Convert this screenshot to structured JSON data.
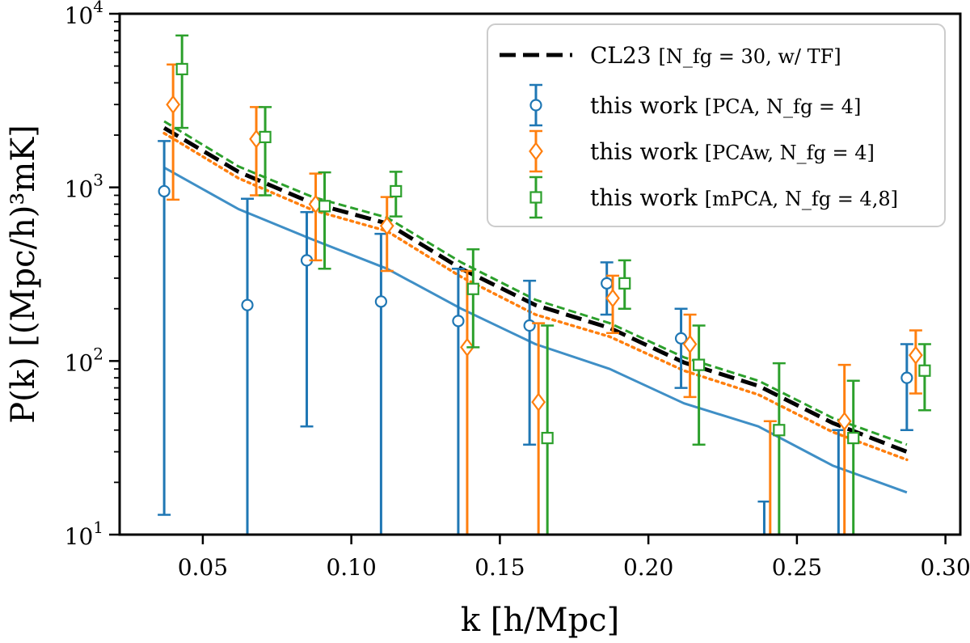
{
  "chart_data": {
    "type": "scatter",
    "xlabel": "k [h/Mpc]",
    "ylabel": "P(k) [(Mpc/h)³mK]",
    "xlim": [
      0.022,
      0.305
    ],
    "ylim": [
      10,
      10000
    ],
    "yscale": "log",
    "x_ticks": [
      "0.05",
      "0.10",
      "0.15",
      "0.20",
      "0.25",
      "0.30"
    ],
    "x_tick_values": [
      0.05,
      0.1,
      0.15,
      0.2,
      0.25,
      0.3
    ],
    "y_ticks": [
      {
        "value": 10,
        "base": "10",
        "exp": "1"
      },
      {
        "value": 100,
        "base": "10",
        "exp": "2"
      },
      {
        "value": 1000,
        "base": "10",
        "exp": "3"
      },
      {
        "value": 10000,
        "base": "10",
        "exp": "4"
      }
    ],
    "legend_position": "top-right",
    "colors": {
      "blue": "#1f77b4",
      "orange": "#ff7f0e",
      "green": "#2ca02c",
      "black": "#000000",
      "lightblue": "#3f8fc6"
    },
    "lines": [
      {
        "label_main": "CL23 ",
        "label_bracket": "[N_fg = 30, w/ TF]",
        "style": "dashed-thick",
        "color": "#000000",
        "x": [
          0.037,
          0.062,
          0.087,
          0.112,
          0.137,
          0.162,
          0.187,
          0.212,
          0.237,
          0.262,
          0.287
        ],
        "y": [
          2200,
          1230,
          810,
          620,
          340,
          210,
          155,
          98,
          72,
          44,
          30
        ]
      },
      {
        "style": "solid",
        "color": "#3f8fc6",
        "x": [
          0.037,
          0.062,
          0.087,
          0.112,
          0.137,
          0.162,
          0.187,
          0.212,
          0.237,
          0.262,
          0.287
        ],
        "y": [
          1300,
          750,
          500,
          340,
          200,
          125,
          90,
          57,
          42,
          25,
          17.5
        ]
      },
      {
        "style": "dotted",
        "color": "#ff7f0e",
        "x": [
          0.037,
          0.062,
          0.087,
          0.112,
          0.137,
          0.162,
          0.187,
          0.212,
          0.237,
          0.262,
          0.287
        ],
        "y": [
          2050,
          1130,
          740,
          560,
          305,
          185,
          138,
          88,
          64,
          39,
          27
        ]
      },
      {
        "style": "dashed",
        "color": "#2ca02c",
        "x": [
          0.037,
          0.062,
          0.087,
          0.112,
          0.137,
          0.162,
          0.187,
          0.212,
          0.237,
          0.262,
          0.287
        ],
        "y": [
          2400,
          1320,
          880,
          670,
          370,
          225,
          165,
          105,
          77,
          47,
          33
        ]
      }
    ],
    "series": [
      {
        "name": "this work [PCA, N_fg = 4]",
        "label_main": "this work ",
        "label_bracket": "[PCA, N_fg = 4]",
        "marker": "circle",
        "color": "#1f77b4",
        "x": [
          0.037,
          0.065,
          0.085,
          0.11,
          0.136,
          0.16,
          0.186,
          0.211,
          0.239,
          0.264,
          0.287
        ],
        "y": [
          950,
          210,
          380,
          220,
          170,
          160,
          280,
          135,
          null,
          null,
          80
        ],
        "err_low": [
          13,
          10,
          42,
          10,
          10,
          33,
          185,
          70,
          10,
          10,
          40
        ],
        "err_high": [
          1850,
          860,
          720,
          540,
          340,
          290,
          370,
          200,
          15.5,
          40,
          125
        ]
      },
      {
        "name": "this work [PCAw, N_fg = 4]",
        "label_main": "this work ",
        "label_bracket": "[PCAw, N_fg = 4]",
        "marker": "diamond",
        "color": "#ff7f0e",
        "x": [
          0.04,
          0.068,
          0.088,
          0.112,
          0.139,
          0.163,
          0.188,
          0.214,
          0.241,
          0.266,
          0.29
        ],
        "y": [
          3000,
          1900,
          800,
          600,
          120,
          58,
          230,
          125,
          null,
          45,
          108
        ],
        "err_low": [
          850,
          900,
          380,
          330,
          10,
          10,
          145,
          62,
          10,
          10,
          65
        ],
        "err_high": [
          5100,
          2900,
          1200,
          880,
          330,
          165,
          310,
          185,
          45,
          95,
          150
        ]
      },
      {
        "name": "this work [mPCA, N_fg = 4,8]",
        "label_main": "this work ",
        "label_bracket": "[mPCA, N_fg = 4,8]",
        "marker": "square",
        "color": "#2ca02c",
        "x": [
          0.043,
          0.071,
          0.091,
          0.115,
          0.141,
          0.166,
          0.192,
          0.217,
          0.244,
          0.269,
          0.293
        ],
        "y": [
          4800,
          1950,
          780,
          950,
          260,
          36,
          280,
          95,
          40,
          36,
          88
        ],
        "err_low": [
          2200,
          900,
          340,
          680,
          120,
          10,
          200,
          33,
          10,
          10,
          52
        ],
        "err_high": [
          7500,
          2900,
          1220,
          1230,
          440,
          160,
          380,
          160,
          97,
          77,
          125
        ]
      }
    ]
  }
}
